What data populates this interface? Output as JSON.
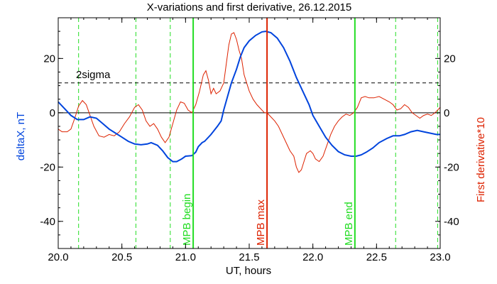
{
  "chart_data": {
    "type": "line",
    "title": "X-variations and first derivative, 26.12.2015",
    "xlabel": "UT, hours",
    "ylabel_left": "deltaX, nT",
    "ylabel_right": "First derivative*10",
    "xlim": [
      20.0,
      23.0
    ],
    "ylim": [
      -50,
      35
    ],
    "x_ticks": [
      "20.0",
      "20.5",
      "21.0",
      "21.5",
      "22.0",
      "22.5",
      "23.0"
    ],
    "x_tick_values": [
      20.0,
      20.5,
      21.0,
      21.5,
      22.0,
      22.5,
      23.0
    ],
    "y_ticks": [
      "-40",
      "-20",
      "0",
      "20"
    ],
    "y_tick_values": [
      -40,
      -20,
      0,
      20
    ],
    "colors": {
      "deltaX": "#0044dd",
      "derivative": "#dd2200",
      "left_label": "#0044dd",
      "right_label": "#dd2200",
      "green": "#22dd22",
      "red_line": "#dd2200"
    },
    "threshold": {
      "label": "2sigma",
      "value": 11
    },
    "vertical_markers": [
      {
        "label": "MPB begin",
        "x": 21.06,
        "color": "#22dd22"
      },
      {
        "label": "MPB max",
        "x": 21.64,
        "color": "#dd2200"
      },
      {
        "label": "MPB end",
        "x": 22.33,
        "color": "#22dd22"
      }
    ],
    "dashed_green_x": [
      20.16,
      20.61,
      20.88,
      22.65,
      22.98
    ],
    "series": [
      {
        "key": "deltaX",
        "points": [
          [
            20.0,
            4
          ],
          [
            20.05,
            1.5
          ],
          [
            20.1,
            -1
          ],
          [
            20.15,
            -2.5
          ],
          [
            20.2,
            -2.5
          ],
          [
            20.25,
            -1.5
          ],
          [
            20.3,
            -2
          ],
          [
            20.35,
            -4
          ],
          [
            20.4,
            -6
          ],
          [
            20.45,
            -7.5
          ],
          [
            20.5,
            -9
          ],
          [
            20.55,
            -10.5
          ],
          [
            20.6,
            -11.5
          ],
          [
            20.65,
            -11.8
          ],
          [
            20.7,
            -11.5
          ],
          [
            20.73,
            -11
          ],
          [
            20.78,
            -12
          ],
          [
            20.82,
            -14
          ],
          [
            20.86,
            -16.5
          ],
          [
            20.9,
            -18
          ],
          [
            20.93,
            -18
          ],
          [
            20.97,
            -17
          ],
          [
            21.0,
            -16
          ],
          [
            21.05,
            -15.8
          ],
          [
            21.08,
            -14.5
          ],
          [
            21.1,
            -12.5
          ],
          [
            21.13,
            -11
          ],
          [
            21.15,
            -10.5
          ],
          [
            21.2,
            -8
          ],
          [
            21.25,
            -5
          ],
          [
            21.28,
            -3
          ],
          [
            21.3,
            1
          ],
          [
            21.33,
            6
          ],
          [
            21.36,
            11
          ],
          [
            21.4,
            16
          ],
          [
            21.43,
            20.5
          ],
          [
            21.46,
            24
          ],
          [
            21.5,
            26.5
          ],
          [
            21.55,
            28.5
          ],
          [
            21.6,
            29.8
          ],
          [
            21.63,
            30
          ],
          [
            21.67,
            29.5
          ],
          [
            21.72,
            27.5
          ],
          [
            21.77,
            24
          ],
          [
            21.82,
            19
          ],
          [
            21.87,
            13
          ],
          [
            21.92,
            8
          ],
          [
            21.97,
            3
          ],
          [
            22.0,
            -1
          ],
          [
            22.05,
            -5
          ],
          [
            22.1,
            -9
          ],
          [
            22.15,
            -12
          ],
          [
            22.2,
            -14.3
          ],
          [
            22.25,
            -15.5
          ],
          [
            22.3,
            -16
          ],
          [
            22.34,
            -16
          ],
          [
            22.38,
            -15.5
          ],
          [
            22.42,
            -14.5
          ],
          [
            22.47,
            -13
          ],
          [
            22.52,
            -11
          ],
          [
            22.58,
            -9.5
          ],
          [
            22.63,
            -8.5
          ],
          [
            22.68,
            -8.5
          ],
          [
            22.72,
            -8
          ],
          [
            22.77,
            -7
          ],
          [
            22.82,
            -6.5
          ],
          [
            22.87,
            -7
          ],
          [
            22.92,
            -7.5
          ],
          [
            22.97,
            -8
          ],
          [
            23.0,
            -8
          ]
        ]
      },
      {
        "key": "derivative",
        "points": [
          [
            20.0,
            -6
          ],
          [
            20.03,
            -7
          ],
          [
            20.07,
            -7
          ],
          [
            20.1,
            -6
          ],
          [
            20.13,
            -2
          ],
          [
            20.16,
            2.5
          ],
          [
            20.19,
            4.5
          ],
          [
            20.22,
            3
          ],
          [
            20.25,
            -1
          ],
          [
            20.28,
            -5
          ],
          [
            20.32,
            -8.5
          ],
          [
            20.36,
            -9
          ],
          [
            20.4,
            -8
          ],
          [
            20.44,
            -8.5
          ],
          [
            20.48,
            -7
          ],
          [
            20.52,
            -4
          ],
          [
            20.56,
            -1.5
          ],
          [
            20.6,
            2
          ],
          [
            20.63,
            3
          ],
          [
            20.66,
            1
          ],
          [
            20.69,
            -3
          ],
          [
            20.72,
            -5
          ],
          [
            20.75,
            -4
          ],
          [
            20.78,
            -6
          ],
          [
            20.81,
            -9
          ],
          [
            20.84,
            -11
          ],
          [
            20.87,
            -9
          ],
          [
            20.9,
            -4
          ],
          [
            20.93,
            1
          ],
          [
            20.96,
            4
          ],
          [
            20.99,
            3.5
          ],
          [
            21.02,
            1
          ],
          [
            21.05,
            0
          ],
          [
            21.08,
            3
          ],
          [
            21.11,
            8
          ],
          [
            21.14,
            14
          ],
          [
            21.16,
            15.5
          ],
          [
            21.18,
            12
          ],
          [
            21.2,
            7
          ],
          [
            21.22,
            9
          ],
          [
            21.24,
            7
          ],
          [
            21.27,
            8
          ],
          [
            21.3,
            11
          ],
          [
            21.32,
            18
          ],
          [
            21.34,
            25
          ],
          [
            21.36,
            29
          ],
          [
            21.38,
            29.5
          ],
          [
            21.4,
            27
          ],
          [
            21.42,
            23
          ],
          [
            21.44,
            20
          ],
          [
            21.46,
            14
          ],
          [
            21.48,
            11
          ],
          [
            21.5,
            8
          ],
          [
            21.53,
            5
          ],
          [
            21.56,
            3
          ],
          [
            21.59,
            1.5
          ],
          [
            21.62,
            0
          ],
          [
            21.64,
            0
          ],
          [
            21.67,
            -1.5
          ],
          [
            21.7,
            -3
          ],
          [
            21.73,
            -5
          ],
          [
            21.76,
            -8
          ],
          [
            21.79,
            -11
          ],
          [
            21.82,
            -14
          ],
          [
            21.85,
            -16
          ],
          [
            21.87,
            -20
          ],
          [
            21.89,
            -22
          ],
          [
            21.91,
            -21
          ],
          [
            21.93,
            -18
          ],
          [
            21.95,
            -15
          ],
          [
            21.98,
            -14
          ],
          [
            22.0,
            -15
          ],
          [
            22.02,
            -17
          ],
          [
            22.05,
            -18
          ],
          [
            22.08,
            -16
          ],
          [
            22.11,
            -12
          ],
          [
            22.14,
            -8
          ],
          [
            22.17,
            -5
          ],
          [
            22.2,
            -3
          ],
          [
            22.23,
            -1.5
          ],
          [
            22.26,
            -0.5
          ],
          [
            22.29,
            -1
          ],
          [
            22.32,
            0
          ],
          [
            22.35,
            2
          ],
          [
            22.38,
            5.5
          ],
          [
            22.41,
            6
          ],
          [
            22.44,
            5.5
          ],
          [
            22.48,
            5.5
          ],
          [
            22.52,
            6
          ],
          [
            22.56,
            5
          ],
          [
            22.6,
            4
          ],
          [
            22.63,
            3
          ],
          [
            22.66,
            1
          ],
          [
            22.69,
            1.5
          ],
          [
            22.72,
            3
          ],
          [
            22.75,
            2
          ],
          [
            22.78,
            0
          ],
          [
            22.81,
            -1
          ],
          [
            22.84,
            -2
          ],
          [
            22.87,
            -1
          ],
          [
            22.9,
            -0.5
          ],
          [
            22.93,
            -1
          ],
          [
            22.96,
            0
          ],
          [
            22.99,
            1.5
          ],
          [
            23.0,
            2
          ]
        ]
      }
    ]
  }
}
